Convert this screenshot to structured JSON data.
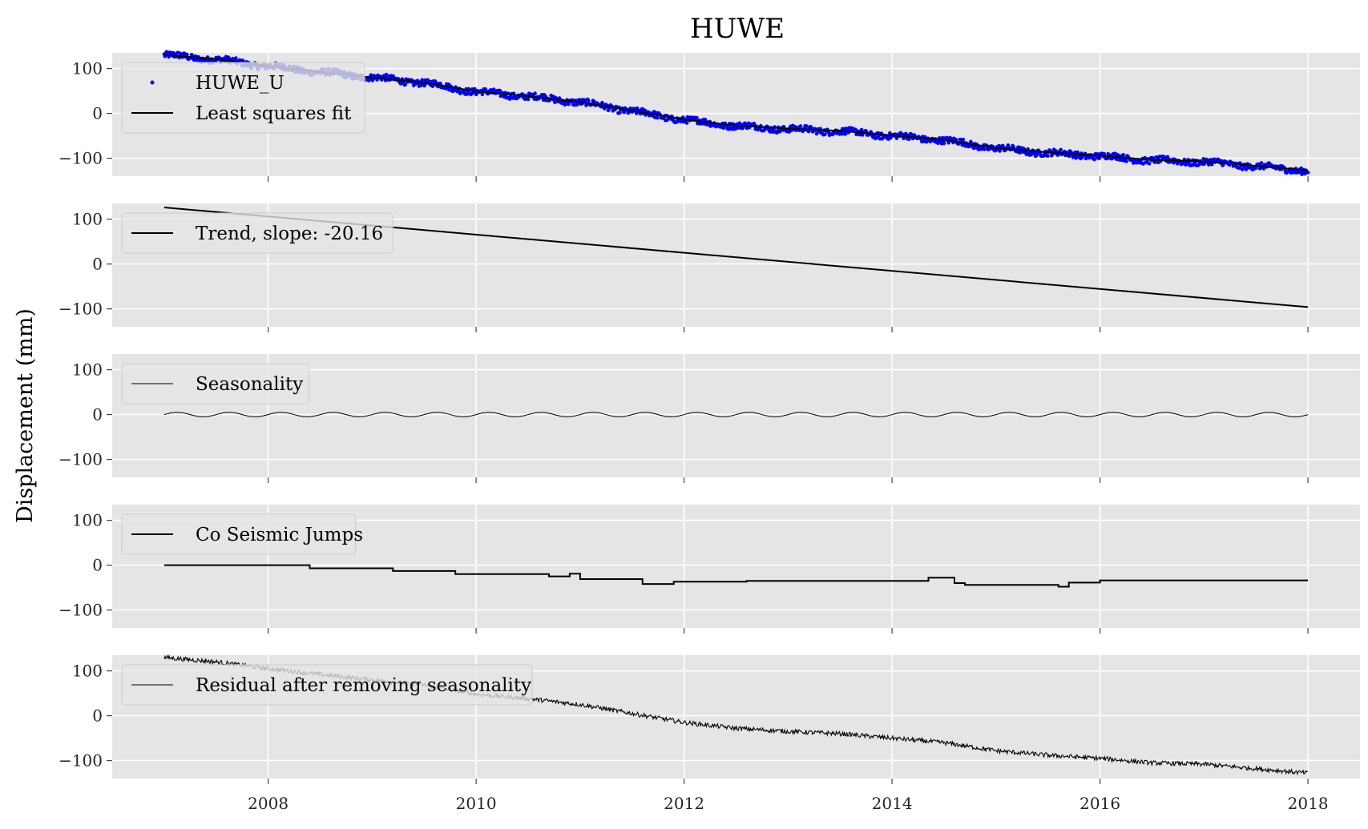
{
  "chart_data": {
    "type": "line",
    "title": "HUWE",
    "ylabel": "Displacement (mm)",
    "xlabel": "",
    "xlim": [
      2006.5,
      2018.5
    ],
    "ylim": [
      -140,
      135
    ],
    "x_ticks": [
      2008,
      2010,
      2012,
      2014,
      2016,
      2018
    ],
    "y_ticks": [
      100,
      0,
      -100
    ],
    "grid": true,
    "legend_position": "top-left",
    "colors": {
      "panel_background": "#e5e5e5",
      "grid": "#ffffff",
      "observations": "#0000ff",
      "fit": "#000000"
    },
    "panels": [
      {
        "legend": [
          {
            "label": "HUWE_U",
            "style": "markers"
          },
          {
            "label": "Least squares fit",
            "style": "line"
          }
        ],
        "series": [
          {
            "name": "HUWE_U",
            "kind": "scatter",
            "x": [
              2007.0,
              2007.5,
              2008.0,
              2008.5,
              2009.0,
              2009.5,
              2010.0,
              2010.5,
              2011.0,
              2011.5,
              2012.0,
              2012.5,
              2013.0,
              2013.5,
              2014.0,
              2014.5,
              2015.0,
              2015.5,
              2016.0,
              2016.5,
              2017.0,
              2017.5,
              2018.0
            ],
            "y": [
              130,
              120,
              105,
              92,
              80,
              68,
              48,
              38,
              25,
              5,
              -15,
              -28,
              -35,
              -40,
              -50,
              -60,
              -78,
              -88,
              -95,
              -105,
              -108,
              -118,
              -128
            ]
          },
          {
            "name": "Least squares fit",
            "kind": "line",
            "x": [
              2007.0,
              2007.5,
              2008.0,
              2008.5,
              2009.0,
              2009.5,
              2010.0,
              2010.5,
              2011.0,
              2011.5,
              2012.0,
              2012.5,
              2013.0,
              2013.5,
              2014.0,
              2014.5,
              2015.0,
              2015.5,
              2016.0,
              2016.5,
              2017.0,
              2017.5,
              2018.0
            ],
            "y": [
              130,
              121,
              106,
              92,
              80,
              69,
              49,
              38,
              25,
              6,
              -14,
              -27,
              -34,
              -39,
              -49,
              -59,
              -77,
              -87,
              -94,
              -104,
              -107,
              -117,
              -127
            ]
          }
        ]
      },
      {
        "legend": [
          {
            "label": "Trend, slope: -20.16",
            "style": "line"
          }
        ],
        "series": [
          {
            "name": "Trend, slope: -20.16",
            "kind": "line",
            "x": [
              2007.0,
              2018.0
            ],
            "y": [
              126,
              -96
            ]
          }
        ]
      },
      {
        "legend": [
          {
            "label": "Seasonality",
            "style": "thinline"
          }
        ],
        "series": [
          {
            "name": "Seasonality",
            "kind": "sine",
            "x_start": 2007.0,
            "x_end": 2018.0,
            "amplitude": 5,
            "cycles_per_year": 2
          }
        ]
      },
      {
        "legend": [
          {
            "label": "Co Seismic Jumps",
            "style": "line"
          }
        ],
        "series": [
          {
            "name": "Co Seismic Jumps",
            "kind": "step",
            "x": [
              2007.0,
              2008.4,
              2009.2,
              2009.8,
              2010.7,
              2010.9,
              2011.0,
              2011.6,
              2011.9,
              2012.6,
              2014.35,
              2014.6,
              2014.7,
              2015.6,
              2015.7,
              2016.0,
              2018.0
            ],
            "y": [
              0,
              -7,
              -13,
              -20,
              -25,
              -19,
              -31,
              -42,
              -37,
              -35,
              -28,
              -40,
              -44,
              -48,
              -39,
              -34,
              -34
            ]
          }
        ]
      },
      {
        "legend": [
          {
            "label": "Residual after removing seasonality",
            "style": "thinline"
          }
        ],
        "series": [
          {
            "name": "Residual after removing seasonality",
            "kind": "line",
            "x": [
              2007.0,
              2007.5,
              2008.0,
              2008.5,
              2009.0,
              2009.5,
              2010.0,
              2010.5,
              2011.0,
              2011.5,
              2012.0,
              2012.5,
              2013.0,
              2013.5,
              2014.0,
              2014.5,
              2015.0,
              2015.5,
              2016.0,
              2016.5,
              2017.0,
              2017.5,
              2018.0
            ],
            "y": [
              130,
              120,
              105,
              92,
              80,
              68,
              48,
              38,
              25,
              5,
              -15,
              -28,
              -35,
              -40,
              -50,
              -60,
              -78,
              -88,
              -95,
              -105,
              -108,
              -118,
              -128
            ]
          }
        ]
      }
    ]
  }
}
